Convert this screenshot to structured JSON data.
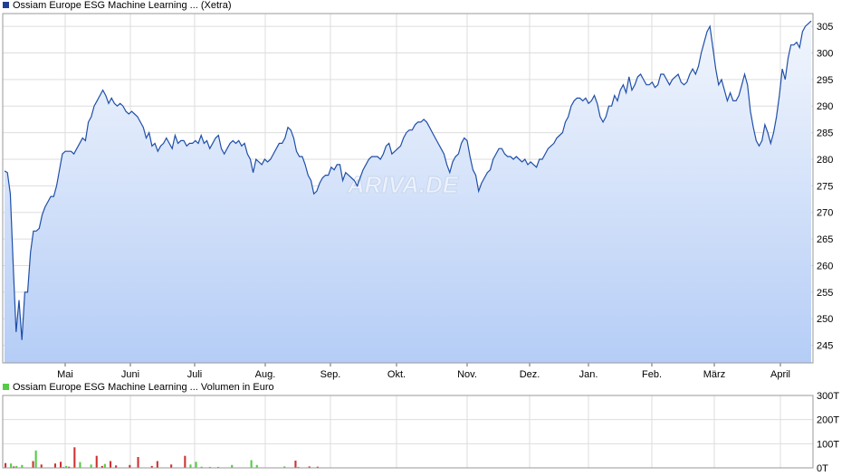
{
  "colors": {
    "line": "#1f4fa8",
    "area_top": "#f2f6fd",
    "area_bottom": "#b5cdf6",
    "grid": "#dddddd",
    "frame": "#999999",
    "vol_up": "#55cc44",
    "vol_down": "#cc3333",
    "legend_price": "#1f3f94",
    "legend_volume": "#55cc44"
  },
  "watermark": "ARIVA.DE",
  "chart_data": [
    {
      "type": "line",
      "title": "Ossiam Europe ESG Machine Learning ...  (Xetra)",
      "x_tick_labels": [
        "Mai",
        "Juni",
        "Juli",
        "Aug.",
        "Sep.",
        "Okt.",
        "Nov.",
        "Dez.",
        "Jan.",
        "Feb.",
        "März",
        "April"
      ],
      "y_tick_labels": [
        "305",
        "300",
        "295",
        "290",
        "285",
        "280",
        "275",
        "270",
        "265",
        "260",
        "255",
        "250",
        "245"
      ],
      "ylim": [
        241.7,
        307.4
      ],
      "grid": true,
      "series": [
        {
          "values": [
            277.8,
            277.5,
            273.5,
            260,
            247.5,
            253.5,
            246,
            255,
            255,
            262.5,
            266.5,
            266.5,
            267,
            269.5,
            271,
            272,
            273,
            273,
            275,
            278,
            281,
            281.5,
            281.5,
            281.5,
            281,
            282,
            283,
            284,
            283.5,
            287,
            288,
            290,
            291,
            292,
            293,
            292,
            290.5,
            291.5,
            290.5,
            290,
            290.5,
            290,
            289,
            288.5,
            289,
            288.5,
            288,
            287,
            286,
            284,
            285,
            282.5,
            283,
            281.5,
            282.5,
            283,
            284,
            283,
            282,
            284.5,
            283,
            283.5,
            283.5,
            282.5,
            283,
            283,
            283.5,
            283,
            284.5,
            283,
            283.5,
            282,
            283,
            284,
            284.5,
            282,
            281,
            282,
            283,
            283.5,
            283,
            283.5,
            282.5,
            283,
            281,
            280,
            277.5,
            280,
            279.5,
            279,
            280,
            279.5,
            280,
            281,
            282,
            283,
            283,
            284,
            286,
            285.5,
            284,
            281.5,
            280.5,
            280.5,
            279,
            277,
            276,
            273.5,
            274,
            275.5,
            276.5,
            277,
            277,
            278.5,
            278,
            279,
            279,
            276,
            277.5,
            277,
            276.5,
            276,
            275,
            276.5,
            278,
            279,
            280,
            280.5,
            280.5,
            280.5,
            280,
            281,
            282.5,
            283,
            281,
            281.5,
            282,
            282.5,
            284,
            285,
            285.5,
            285.5,
            286.5,
            287,
            287,
            287.5,
            287,
            286,
            285,
            284,
            283,
            282,
            281,
            279,
            277.5,
            279.5,
            280.5,
            281,
            283,
            284,
            283.5,
            280.5,
            278,
            277,
            274,
            275.5,
            276.5,
            277.5,
            278,
            280,
            281,
            282,
            282,
            281,
            280.5,
            280.5,
            280,
            280.5,
            280,
            279.5,
            280,
            279,
            279.5,
            279,
            278.5,
            280,
            280,
            281,
            282,
            282.5,
            283,
            284,
            284.5,
            285,
            287,
            288,
            290,
            291,
            291.5,
            291.5,
            291,
            291.5,
            290.5,
            291,
            292,
            290.5,
            288,
            287,
            288,
            290,
            290,
            292,
            291,
            293,
            294,
            292.5,
            295.5,
            293,
            294,
            295.5,
            296,
            295,
            294,
            294,
            294.5,
            293.5,
            294,
            296,
            296,
            295,
            294,
            295,
            295.5,
            296,
            294.5,
            294,
            294.5,
            296,
            297,
            296,
            297.5,
            300,
            302,
            304,
            305,
            301,
            297,
            294,
            295,
            293,
            291,
            292.5,
            291,
            291,
            292,
            294,
            296,
            294,
            289,
            286,
            283.5,
            282.5,
            283.5,
            286.5,
            285,
            283,
            285,
            288,
            292,
            297,
            295,
            299,
            301.5,
            301.5,
            302,
            301,
            304,
            305,
            305.5,
            306
          ]
        }
      ]
    },
    {
      "type": "bar",
      "title": "Ossiam Europe ESG Machine Learning ... Volumen in Euro",
      "y_tick_labels": [
        "300T",
        "200T",
        "100T",
        "0T"
      ],
      "ylim": [
        0,
        300
      ],
      "grid": true,
      "series": [
        {
          "values": [
            20,
            0,
            18,
            6,
            8,
            0,
            12,
            2,
            0,
            0,
            28,
            72,
            0,
            14,
            0,
            0,
            0,
            0,
            18,
            0,
            25,
            4,
            8,
            5,
            0,
            85,
            0,
            24,
            0,
            0,
            0,
            14,
            0,
            50,
            0,
            8,
            16,
            0,
            28,
            0,
            10,
            0,
            0,
            0,
            0,
            12,
            0,
            0,
            45,
            0,
            0,
            0,
            0,
            8,
            2,
            28,
            0,
            0,
            0,
            0,
            14,
            0,
            0,
            0,
            0,
            50,
            0,
            14,
            0,
            25,
            0,
            5,
            0,
            0,
            4,
            0,
            0,
            4,
            0,
            0,
            0,
            0,
            12,
            0,
            0,
            0,
            0,
            0,
            0,
            32,
            0,
            12,
            0,
            0,
            0,
            0,
            0,
            0,
            0,
            0,
            0,
            6,
            0,
            0,
            0,
            30,
            4,
            0,
            0,
            0,
            6,
            0,
            0,
            5,
            0,
            0,
            0,
            0,
            0,
            0,
            0,
            0,
            0,
            0,
            0,
            0,
            0,
            0,
            0,
            0,
            0,
            0,
            0,
            0,
            0,
            0,
            0,
            0,
            0,
            0,
            0,
            0,
            0,
            0,
            0,
            0,
            0,
            0,
            0,
            0,
            0,
            0,
            0,
            0,
            0,
            0,
            0,
            0,
            0,
            0,
            0,
            0,
            0,
            0,
            0,
            0,
            0,
            0,
            0,
            0,
            0,
            0,
            0,
            0,
            0,
            0,
            0,
            0,
            0,
            0,
            0,
            0,
            0,
            0,
            0,
            0,
            0,
            0,
            0,
            0,
            0,
            0,
            0,
            0,
            0,
            0,
            0,
            0,
            0,
            0,
            0,
            0,
            0,
            0,
            0,
            0,
            0,
            0,
            0,
            0,
            0,
            0,
            0,
            0,
            0,
            0,
            0,
            0,
            0,
            0,
            0,
            0,
            0,
            0,
            0,
            0,
            0,
            0,
            0,
            0,
            0,
            0,
            0,
            0,
            0,
            0,
            0,
            0,
            0,
            0,
            0,
            0,
            0,
            0,
            0,
            0,
            0,
            0,
            0,
            0,
            0,
            0,
            0,
            0,
            0,
            0,
            0,
            0,
            0,
            0,
            0,
            0,
            0,
            0,
            0,
            0,
            0,
            0,
            0,
            0,
            0,
            0,
            0,
            0,
            0,
            0,
            0,
            0,
            0,
            0,
            0,
            0,
            0,
            0,
            0,
            0,
            0,
            0,
            0,
            0,
            0,
            0
          ]
        }
      ]
    }
  ],
  "legend": {
    "price": "Ossiam Europe ESG Machine Learning ...  (Xetra)",
    "volume": "Ossiam Europe ESG Machine Learning ... Volumen in Euro"
  }
}
